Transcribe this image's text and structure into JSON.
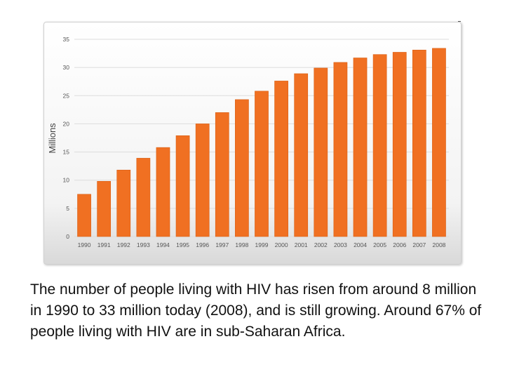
{
  "chart_data": {
    "type": "bar",
    "title": "",
    "xlabel": "",
    "ylabel": "Millions",
    "ylim": [
      0,
      35
    ],
    "yticks": [
      "0",
      "5",
      "10",
      "15",
      "20",
      "25",
      "30",
      "35"
    ],
    "categories": [
      "1990",
      "1991",
      "1992",
      "1993",
      "1994",
      "1995",
      "1996",
      "1997",
      "1998",
      "1999",
      "2000",
      "2001",
      "2002",
      "2003",
      "2004",
      "2005",
      "2006",
      "2007",
      "2008"
    ],
    "values": [
      7.5,
      9.8,
      11.8,
      13.9,
      15.8,
      17.9,
      20.0,
      22.0,
      24.3,
      25.8,
      27.6,
      28.9,
      29.9,
      30.9,
      31.7,
      32.3,
      32.7,
      33.1,
      33.4
    ],
    "grid": true,
    "colors": {
      "bar": "#f07022",
      "bar_edge": "#d95f14",
      "grid": "#dcdcdc",
      "axis_text": "#555555"
    }
  },
  "caption": "The number of people living with HIV has risen from around 8 million in 1990 to 33 million today (2008), and is still growing. Around 67% of people living with HIV are in sub-Saharan Africa."
}
